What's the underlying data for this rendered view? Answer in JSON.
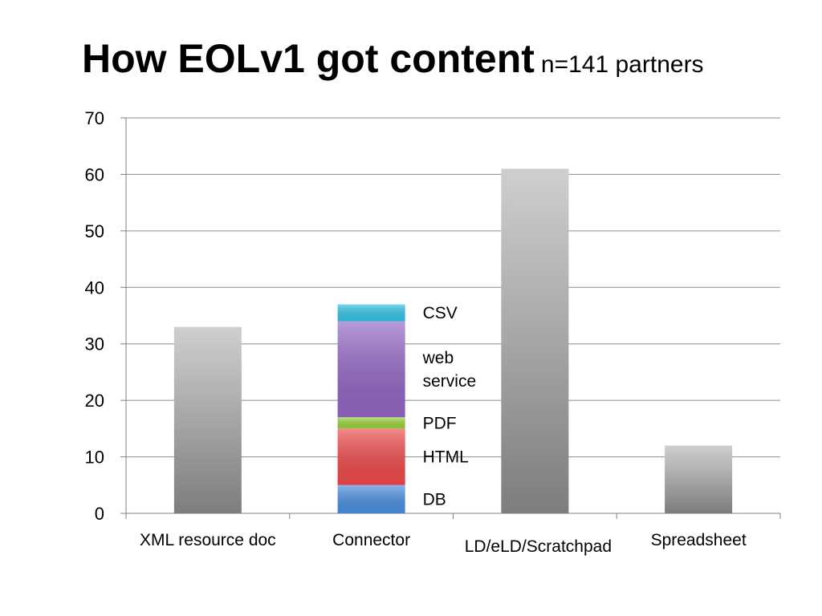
{
  "slide": {
    "title": "How EOLv1 got content",
    "subtitle": "n=141 partners"
  },
  "chart_data": {
    "type": "bar",
    "title": "",
    "xlabel": "",
    "ylabel": "",
    "ylim": [
      0,
      70
    ],
    "yticks": [
      0,
      10,
      20,
      30,
      40,
      50,
      60,
      70
    ],
    "grid": true,
    "categories": [
      "XML resource doc",
      "Connector",
      "LD/eLD/Scratchpad",
      "Spreadsheet"
    ],
    "values": [
      33,
      37,
      61,
      12
    ],
    "stacked_category": "Connector",
    "stack_segments": [
      {
        "name": "DB",
        "value": 5,
        "color": "#4a90e2"
      },
      {
        "name": "HTML",
        "value": 10,
        "color": "#f04a4a"
      },
      {
        "name": "PDF",
        "value": 2,
        "color": "#9ad43c"
      },
      {
        "name": "web service",
        "value": 17,
        "color": "#9467c6"
      },
      {
        "name": "CSV",
        "value": 3,
        "color": "#33c4e6"
      }
    ],
    "bar_color": "#8c8c8c",
    "axis_color": "#808080",
    "grid_color": "#8c8c8c"
  }
}
